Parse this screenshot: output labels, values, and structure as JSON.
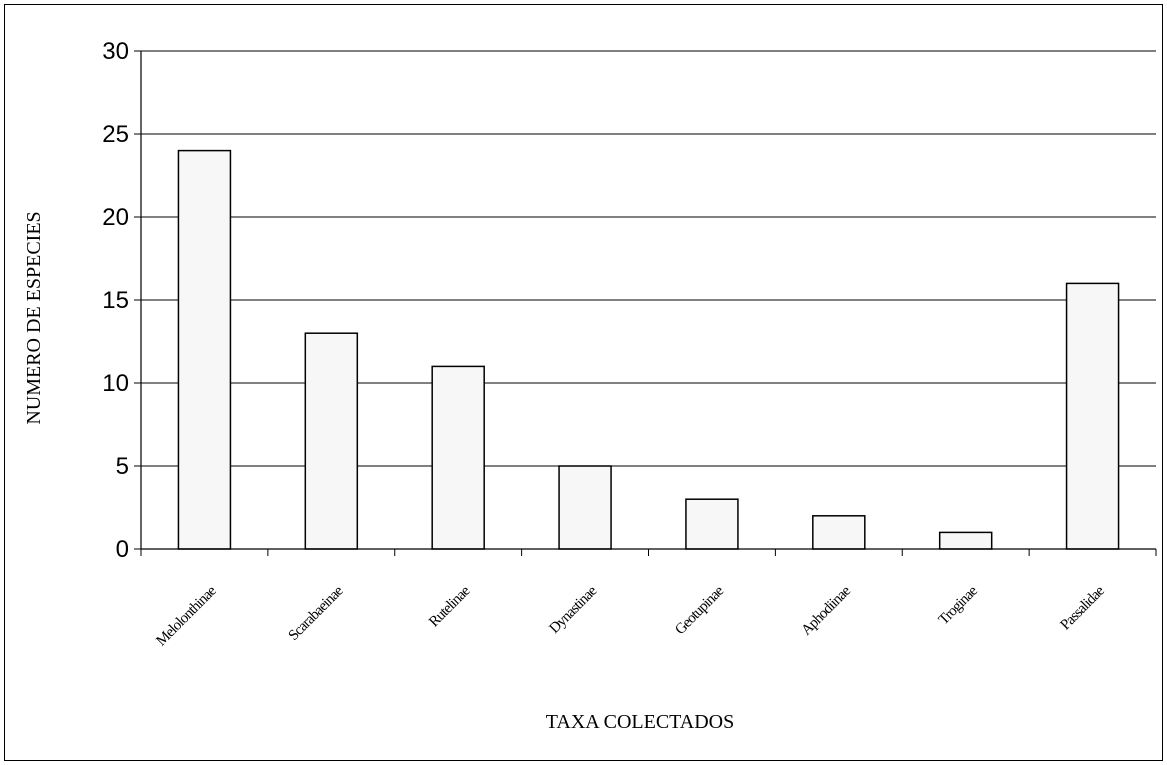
{
  "chart_data": {
    "type": "bar",
    "categories": [
      "Melolonthinae",
      "Scarabaeinae",
      "Rutelinae",
      "Dynastinae",
      "Geotupinae",
      "Aphodiinae",
      "Troginae",
      "Passalidae"
    ],
    "values": [
      24,
      13,
      11,
      5,
      3,
      2,
      1,
      16
    ],
    "xlabel": "TAXA COLECTADOS",
    "ylabel": "NUMERO DE ESPECIES",
    "ylim": [
      0,
      30
    ],
    "yticks": [
      0,
      5,
      10,
      15,
      20,
      25,
      30
    ],
    "grid": true,
    "legend": "none",
    "colors": {
      "bar_fill": "#f7f7f7",
      "bar_stroke": "#000000",
      "grid": "#000000",
      "axis": "#000000"
    }
  }
}
